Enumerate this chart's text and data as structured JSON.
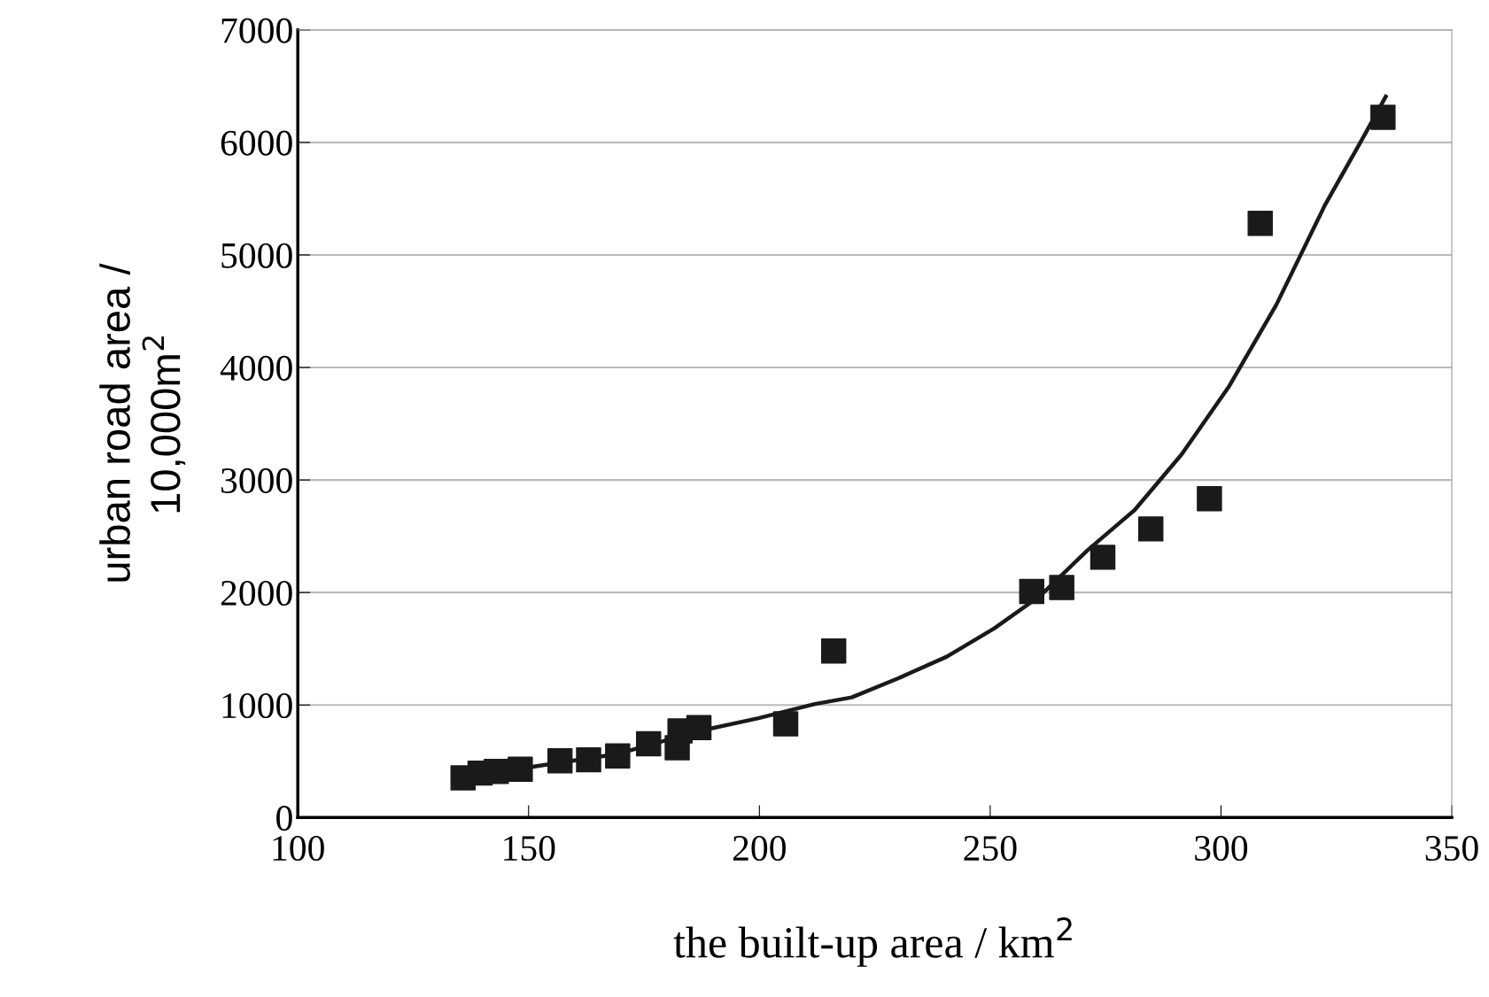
{
  "chart_data": {
    "type": "scatter",
    "xlabel": "the built-up area / km$^{2}$",
    "ylabel": "urban road area /\n10,000m$^{2}$",
    "xlim": [
      100,
      350
    ],
    "xticks": [
      100,
      150,
      200,
      250,
      300,
      350
    ],
    "ylim": [
      0,
      7000
    ],
    "yticks": [
      0,
      1000,
      2000,
      3000,
      4000,
      5000,
      6000,
      7000
    ],
    "grid": "y",
    "series": [
      {
        "type": "scatter",
        "color": "#1a1a1a",
        "marker": "square",
        "x": [
          135.8,
          139.5,
          143,
          148.2,
          156.8,
          163,
          169.3,
          176,
          182.2,
          182.8,
          186.9,
          205.7,
          216.1,
          259,
          265.5,
          274.4,
          284.8,
          297.5,
          308.5,
          335.1
        ],
        "values": [
          353,
          395,
          410,
          429,
          505,
          513,
          547,
          656,
          620,
          770,
          799,
          833,
          1480,
          2010,
          2044,
          2313,
          2565,
          2834,
          5281,
          6223
        ]
      },
      {
        "type": "line",
        "color": "#1a1a1a",
        "marker": "none",
        "line_style": "solid",
        "x": [
          135.8,
          148.6,
          169,
          187.5,
          199.8,
          212,
          220,
          230,
          240.6,
          250.9,
          261,
          271,
          281.3,
          291.5,
          301.8,
          312,
          322.5,
          330.6,
          335.7
        ],
        "values": [
          286,
          437,
          563,
          774,
          883,
          1009,
          1068,
          1236,
          1430,
          1682,
          1976,
          2372,
          2733,
          3229,
          3835,
          4558,
          5441,
          6030,
          6408
        ]
      }
    ]
  }
}
